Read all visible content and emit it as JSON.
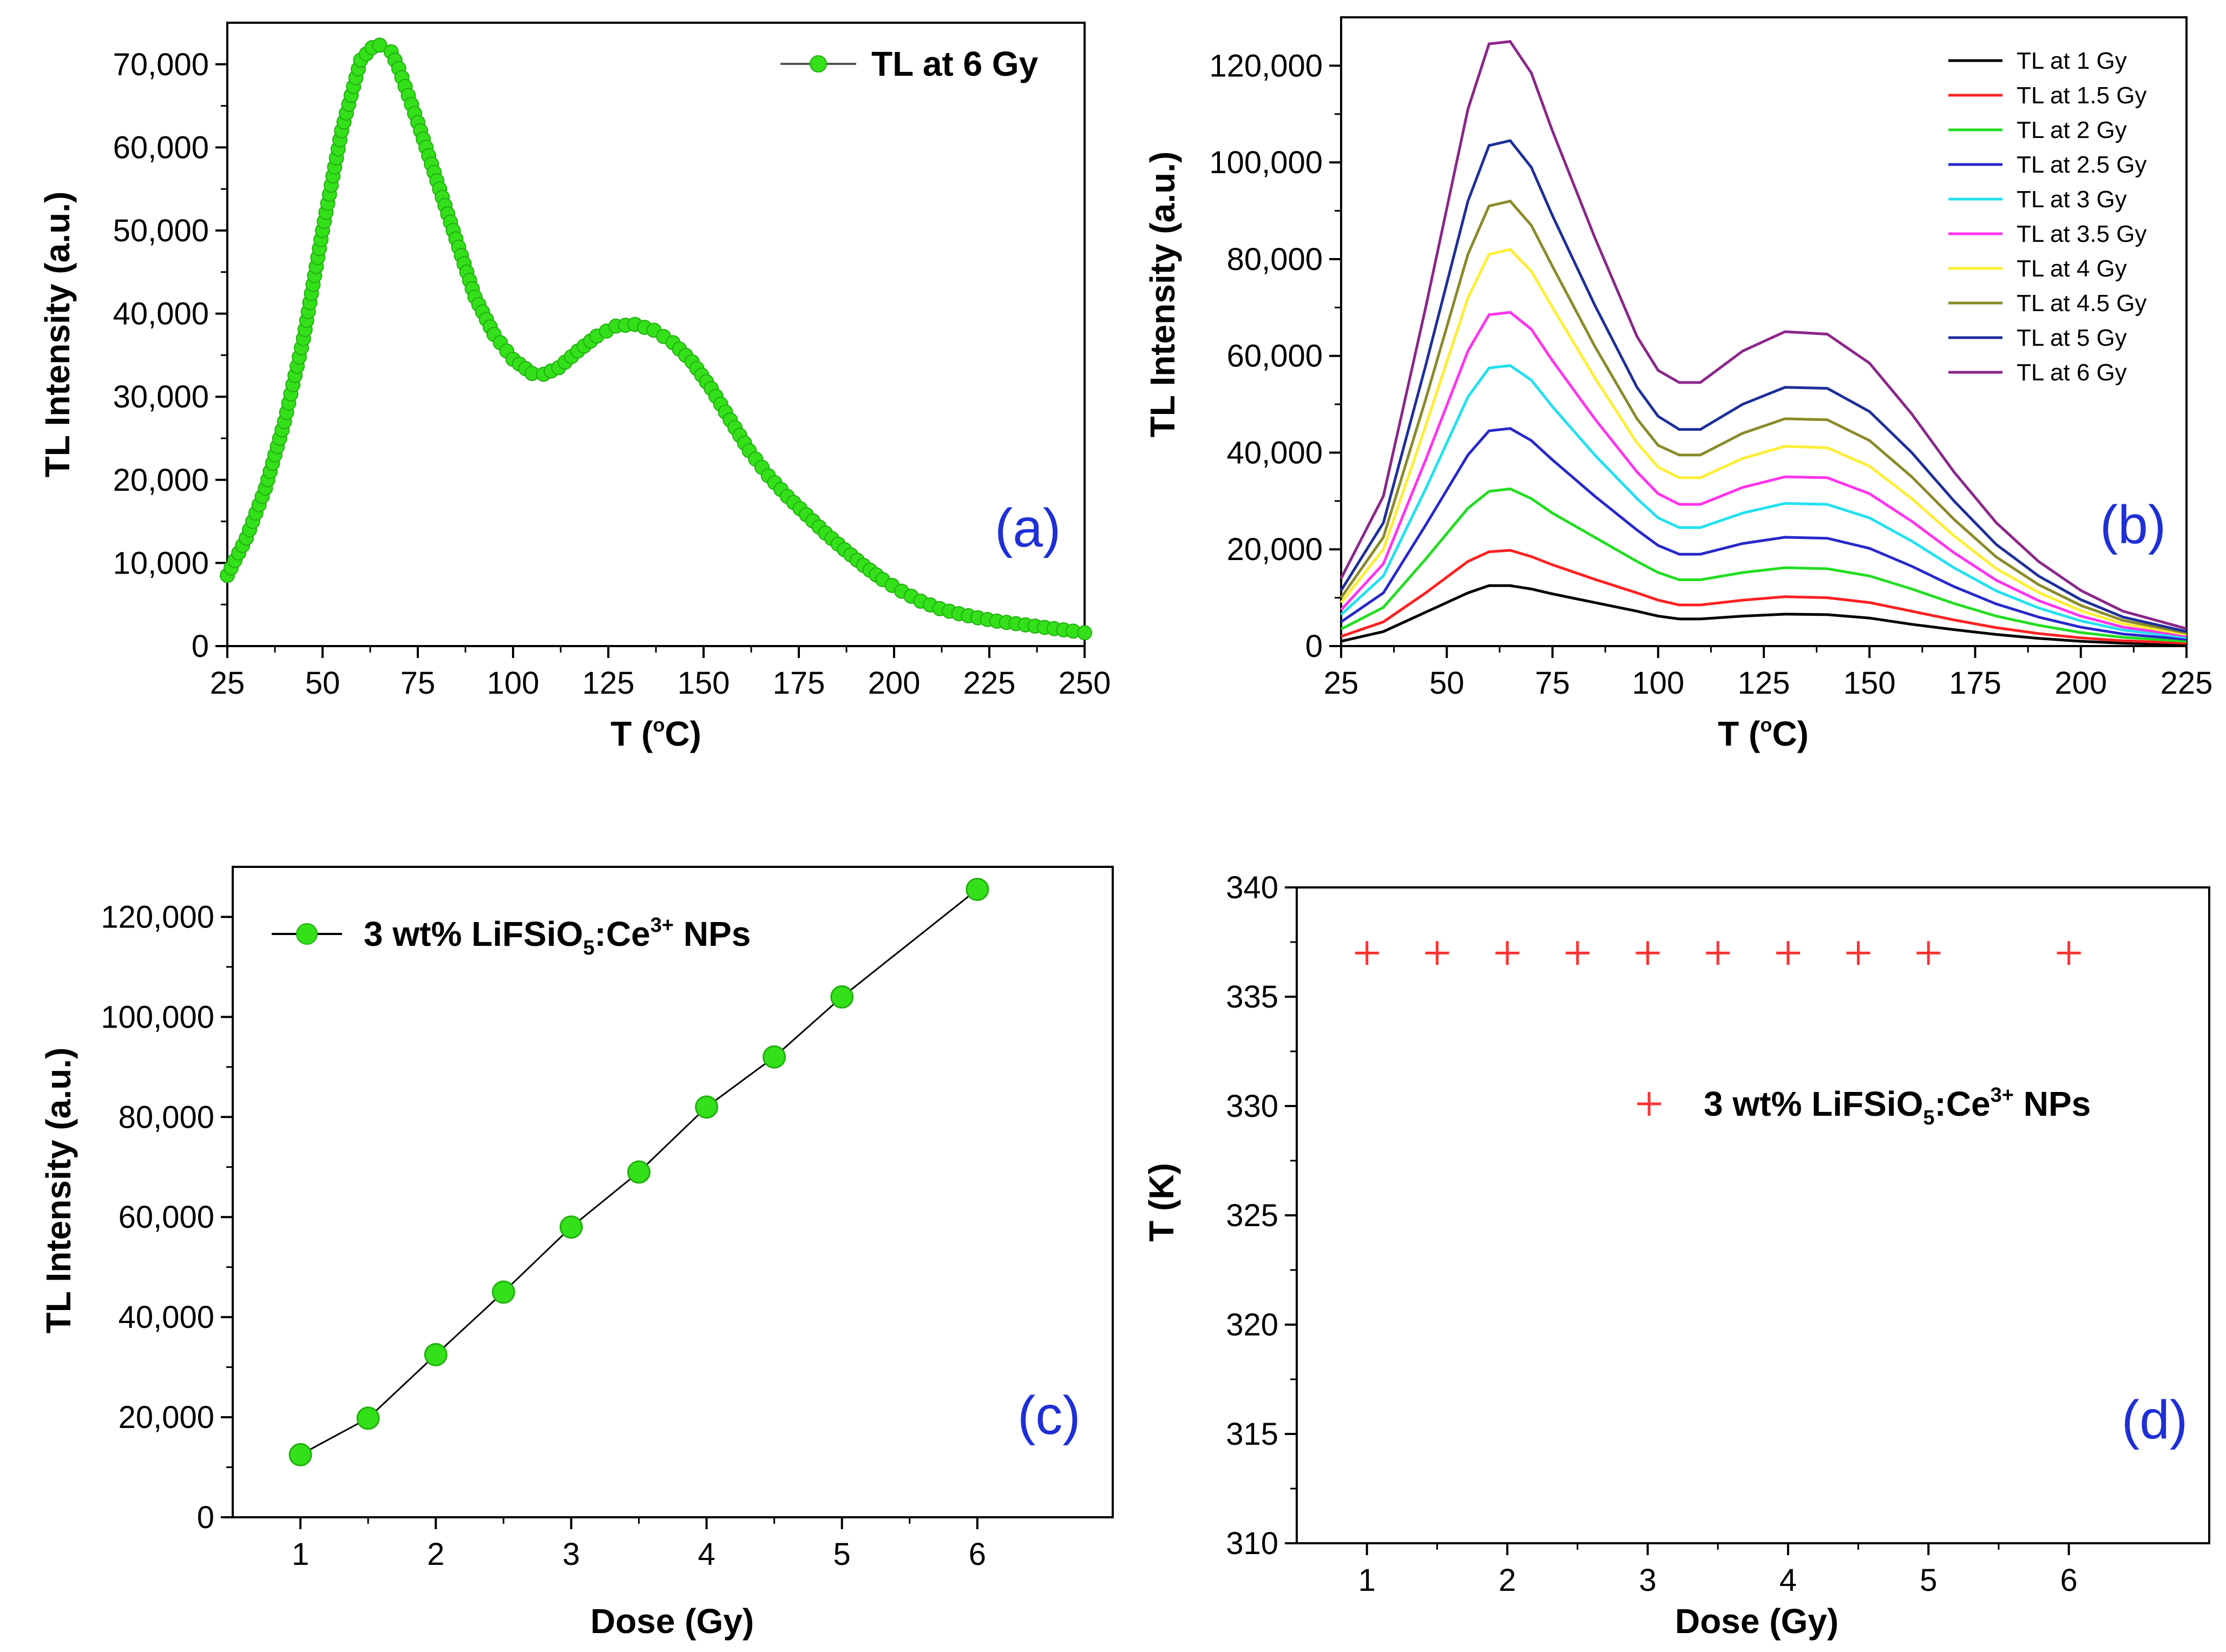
{
  "chart_data": [
    {
      "id": "a",
      "type": "line",
      "panel_label": "(a)",
      "xlabel": "T (°C)",
      "ylabel": "TL Intensity (a.u.)",
      "xlim": [
        25,
        250
      ],
      "ylim": [
        0,
        75000
      ],
      "xticks": [
        25,
        50,
        75,
        100,
        125,
        150,
        175,
        200,
        225,
        250
      ],
      "xtick_labels": [
        "25",
        "50",
        "75",
        "100",
        "125",
        "150",
        "175",
        "200",
        "225",
        "250"
      ],
      "yticks": [
        0,
        10000,
        20000,
        30000,
        40000,
        50000,
        60000,
        70000
      ],
      "ytick_labels": [
        "0",
        "10,000",
        "20,000",
        "30,000",
        "40,000",
        "50,000",
        "60,000",
        "70,000"
      ],
      "legend": [
        "TL at 6 Gy"
      ],
      "legend_position": "top-right",
      "series": [
        {
          "name": "TL at 6 Gy",
          "color": "#33e01a",
          "x": [
            25,
            30,
            35,
            40,
            45,
            50,
            55,
            60,
            63,
            65,
            68,
            70,
            75,
            80,
            85,
            90,
            95,
            100,
            105,
            108,
            112,
            117,
            122,
            127,
            132,
            137,
            142,
            147,
            152,
            157,
            162,
            167,
            172,
            177,
            182,
            187,
            192,
            197,
            202,
            207,
            212,
            217,
            222,
            227,
            232,
            237,
            242,
            247,
            250
          ],
          "y": [
            8500,
            13000,
            19000,
            27000,
            37000,
            50000,
            62000,
            70500,
            72000,
            72300,
            71500,
            69500,
            63000,
            56000,
            49000,
            42000,
            37500,
            34500,
            32800,
            32700,
            33500,
            35500,
            37300,
            38500,
            38700,
            38000,
            36500,
            34200,
            31000,
            27200,
            23500,
            20500,
            18000,
            15800,
            13600,
            11600,
            9700,
            8000,
            6600,
            5400,
            4500,
            3900,
            3400,
            3000,
            2700,
            2400,
            2100,
            1800,
            1600
          ]
        }
      ]
    },
    {
      "id": "b",
      "type": "line",
      "panel_label": "(b)",
      "xlabel": "T (°C)",
      "ylabel": "TL Intensity (a.u.)",
      "xlim": [
        25,
        225
      ],
      "ylim": [
        0,
        130000
      ],
      "xticks": [
        25,
        50,
        75,
        100,
        125,
        150,
        175,
        200,
        225
      ],
      "xtick_labels": [
        "25",
        "50",
        "75",
        "100",
        "125",
        "150",
        "175",
        "200",
        "225"
      ],
      "yticks": [
        0,
        20000,
        40000,
        60000,
        80000,
        100000,
        120000
      ],
      "ytick_labels": [
        "0",
        "20,000",
        "40,000",
        "60,000",
        "80,000",
        "100,000",
        "120,000"
      ],
      "legend_position": "top-right",
      "x": [
        25,
        35,
        45,
        55,
        60,
        65,
        70,
        75,
        85,
        95,
        100,
        105,
        110,
        120,
        130,
        140,
        150,
        160,
        170,
        180,
        190,
        200,
        210,
        225
      ],
      "series": [
        {
          "name": "TL at 1 Gy",
          "color": "#000000",
          "y": [
            1000,
            3000,
            7000,
            11000,
            12500,
            12500,
            11800,
            10800,
            9000,
            7200,
            6200,
            5600,
            5600,
            6200,
            6600,
            6500,
            5800,
            4500,
            3400,
            2400,
            1600,
            1000,
            600,
            300
          ]
        },
        {
          "name": "TL at 1.5 Gy",
          "color": "#ff2020",
          "y": [
            2000,
            5000,
            11000,
            17500,
            19500,
            19800,
            18500,
            16800,
            13800,
            11000,
            9500,
            8500,
            8500,
            9500,
            10200,
            10000,
            9000,
            7200,
            5400,
            3800,
            2600,
            1700,
            1100,
            600
          ]
        },
        {
          "name": "TL at 2 Gy",
          "color": "#22dd22",
          "y": [
            3500,
            8000,
            18000,
            28500,
            32000,
            32500,
            30500,
            27500,
            22500,
            17500,
            15200,
            13700,
            13700,
            15200,
            16200,
            16000,
            14500,
            11800,
            8800,
            6200,
            4300,
            2800,
            1800,
            1000
          ]
        },
        {
          "name": "TL at 2.5 Gy",
          "color": "#2828cc",
          "y": [
            5000,
            11000,
            25000,
            39500,
            44500,
            45000,
            42500,
            38500,
            31000,
            24000,
            20800,
            19000,
            19000,
            21200,
            22500,
            22300,
            20200,
            16500,
            12300,
            8700,
            6000,
            3900,
            2500,
            1400
          ]
        },
        {
          "name": "TL at 3 Gy",
          "color": "#22e0f0",
          "y": [
            6500,
            14500,
            32500,
            51500,
            57500,
            58000,
            55000,
            49500,
            39500,
            30500,
            26500,
            24500,
            24500,
            27500,
            29500,
            29300,
            26500,
            21700,
            16200,
            11400,
            7900,
            5200,
            3300,
            1800
          ]
        },
        {
          "name": "TL at 3.5 Gy",
          "color": "#ff33ee",
          "y": [
            7500,
            17000,
            38500,
            61000,
            68500,
            69000,
            65500,
            59000,
            47000,
            36000,
            31500,
            29300,
            29300,
            32800,
            35000,
            34800,
            31500,
            25800,
            19300,
            13600,
            9400,
            6200,
            3900,
            2100
          ]
        },
        {
          "name": "TL at 4 Gy",
          "color": "#ffee33",
          "y": [
            9000,
            20000,
            45500,
            72000,
            81000,
            82000,
            77500,
            70000,
            55500,
            42000,
            37000,
            34800,
            34800,
            38800,
            41300,
            41000,
            37200,
            30500,
            22800,
            16000,
            11100,
            7300,
            4600,
            2400
          ]
        },
        {
          "name": "TL at 4.5 Gy",
          "color": "#8a8a2a",
          "y": [
            10000,
            22500,
            51000,
            81000,
            91000,
            92000,
            87000,
            78500,
            62000,
            47000,
            41500,
            39500,
            39500,
            44000,
            47000,
            46800,
            42500,
            35000,
            26200,
            18400,
            12700,
            8400,
            5300,
            2700
          ]
        },
        {
          "name": "TL at 5 Gy",
          "color": "#1e2f99",
          "y": [
            11500,
            25500,
            58000,
            92000,
            103500,
            104500,
            99000,
            89000,
            70500,
            53500,
            47500,
            44800,
            44800,
            50000,
            53500,
            53300,
            48500,
            40000,
            30000,
            21000,
            14500,
            9600,
            6000,
            3000
          ]
        },
        {
          "name": "TL at 6 Gy",
          "color": "#8a268a",
          "y": [
            14000,
            31000,
            70000,
            111000,
            124500,
            125000,
            118500,
            106500,
            84500,
            64000,
            57000,
            54500,
            54500,
            61000,
            65000,
            64500,
            58500,
            48000,
            36000,
            25500,
            17500,
            11500,
            7200,
            3600
          ]
        }
      ]
    },
    {
      "id": "c",
      "type": "line",
      "panel_label": "(c)",
      "xlabel": "Dose (Gy)",
      "ylabel": "TL Intensity (a.u.)",
      "xlim": [
        0.5,
        7.0
      ],
      "ylim": [
        0,
        130000
      ],
      "xticks": [
        1,
        2,
        3,
        4,
        5,
        6
      ],
      "xtick_labels": [
        "1",
        "2",
        "3",
        "4",
        "5",
        "6"
      ],
      "yticks": [
        0,
        20000,
        40000,
        60000,
        80000,
        100000,
        120000
      ],
      "ytick_labels": [
        "0",
        "20,000",
        "40,000",
        "60,000",
        "80,000",
        "100,000",
        "120,000"
      ],
      "legend_position": "top-left",
      "series": [
        {
          "name": "3 wt% LiFSiO5:Ce3+ NPs",
          "color": "#33e01a",
          "x": [
            1,
            1.5,
            2,
            2.5,
            3,
            3.5,
            4,
            4.5,
            5,
            6
          ],
          "y": [
            12500,
            19800,
            32500,
            45000,
            58000,
            69000,
            82000,
            92000,
            104000,
            125500
          ]
        }
      ]
    },
    {
      "id": "d",
      "type": "scatter",
      "panel_label": "(d)",
      "xlabel": "Dose (Gy)",
      "ylabel": "T (K)",
      "xlim": [
        0.5,
        7.0
      ],
      "ylim": [
        310,
        340
      ],
      "xticks": [
        1,
        2,
        3,
        4,
        5,
        6
      ],
      "xtick_labels": [
        "1",
        "2",
        "3",
        "4",
        "5",
        "6"
      ],
      "yticks": [
        310,
        315,
        320,
        325,
        330,
        335,
        340
      ],
      "ytick_labels": [
        "310",
        "315",
        "320",
        "325",
        "330",
        "335",
        "340"
      ],
      "legend_position": "center-right",
      "series": [
        {
          "name": "3 wt% LiFSiO5:Ce3+ NPs",
          "color": "#ff3030",
          "marker": "+",
          "x": [
            1,
            1.5,
            2,
            2.5,
            3,
            3.5,
            4,
            4.5,
            5,
            6
          ],
          "y": [
            337,
            337,
            337,
            337,
            337,
            337,
            337,
            337,
            337,
            337
          ]
        }
      ]
    }
  ],
  "legend_text": {
    "a": "TL at 6 Gy",
    "c_main": "3 wt% LiFSiO",
    "c_sub": "5",
    "c_mid": ":Ce",
    "c_sup": "3+",
    "c_end": " NPs",
    "d_main": "3 wt% LiFSiO",
    "d_sub": "5",
    "d_mid": ":Ce",
    "d_sup": "3+",
    "d_end": " NPs"
  },
  "axis_text": {
    "degree_T": "T (",
    "degree_o": "o",
    "degree_C": "C)"
  }
}
